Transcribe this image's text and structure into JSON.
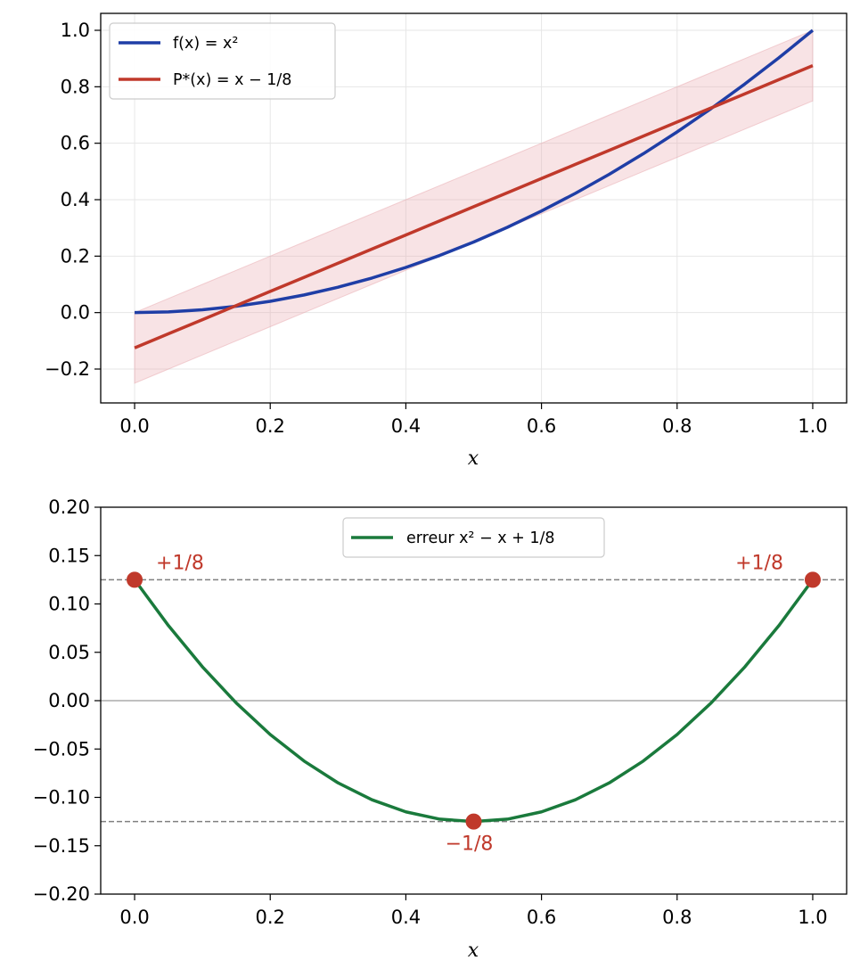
{
  "chart_data": [
    {
      "type": "line",
      "xlabel": "x",
      "xlim": [
        -0.05,
        1.05
      ],
      "ylim": [
        -0.32,
        1.06
      ],
      "xticks": [
        0.0,
        0.2,
        0.4,
        0.6,
        0.8,
        1.0
      ],
      "xtick_labels": [
        "0.0",
        "0.2",
        "0.4",
        "0.6",
        "0.8",
        "1.0"
      ],
      "yticks": [
        -0.2,
        0.0,
        0.2,
        0.4,
        0.6,
        0.8,
        1.0
      ],
      "ytick_labels": [
        "−0.2",
        "0.0",
        "0.2",
        "0.4",
        "0.6",
        "0.8",
        "1.0"
      ],
      "grid": true,
      "legend": "upper-left",
      "x": [
        0.0,
        0.05,
        0.1,
        0.15,
        0.2,
        0.25,
        0.3,
        0.35,
        0.4,
        0.45,
        0.5,
        0.55,
        0.6,
        0.65,
        0.7,
        0.75,
        0.8,
        0.85,
        0.9,
        0.95,
        1.0
      ],
      "series": [
        {
          "name": "f(x) = x²",
          "color": "#1f3ea6",
          "values": [
            0.0,
            0.0025,
            0.01,
            0.0225,
            0.04,
            0.0625,
            0.09,
            0.1225,
            0.16,
            0.2025,
            0.25,
            0.3025,
            0.36,
            0.4225,
            0.49,
            0.5625,
            0.64,
            0.7225,
            0.81,
            0.9025,
            1.0
          ]
        },
        {
          "name": "P*(x) = x − 1/8",
          "color": "#c0392b",
          "values": [
            -0.125,
            -0.075,
            -0.025,
            0.025,
            0.075,
            0.125,
            0.175,
            0.225,
            0.275,
            0.325,
            0.375,
            0.425,
            0.475,
            0.525,
            0.575,
            0.625,
            0.675,
            0.725,
            0.775,
            0.825,
            0.875
          ]
        }
      ],
      "band": {
        "around": "P*(x) = x − 1/8",
        "halfwidth": 0.125,
        "color": "#e8a7ad"
      }
    },
    {
      "type": "line",
      "xlabel": "x",
      "xlim": [
        -0.05,
        1.05
      ],
      "ylim": [
        -0.2,
        0.2
      ],
      "xticks": [
        0.0,
        0.2,
        0.4,
        0.6,
        0.8,
        1.0
      ],
      "xtick_labels": [
        "0.0",
        "0.2",
        "0.4",
        "0.6",
        "0.8",
        "1.0"
      ],
      "yticks": [
        -0.2,
        -0.15,
        -0.1,
        -0.05,
        0.0,
        0.05,
        0.1,
        0.15,
        0.2
      ],
      "ytick_labels": [
        "−0.20",
        "−0.15",
        "−0.10",
        "−0.05",
        "0.00",
        "0.05",
        "0.10",
        "0.15",
        "0.20"
      ],
      "grid": false,
      "legend": "upper-center",
      "x": [
        0.0,
        0.05,
        0.1,
        0.15,
        0.2,
        0.25,
        0.3,
        0.35,
        0.4,
        0.45,
        0.5,
        0.55,
        0.6,
        0.65,
        0.7,
        0.75,
        0.8,
        0.85,
        0.9,
        0.95,
        1.0
      ],
      "series": [
        {
          "name": "erreur x² − x + 1/8",
          "color": "#1a7a3c",
          "values": [
            0.125,
            0.0775,
            0.035,
            -0.0025,
            -0.035,
            -0.0625,
            -0.085,
            -0.1025,
            -0.115,
            -0.1225,
            -0.125,
            -0.1225,
            -0.115,
            -0.1025,
            -0.085,
            -0.0625,
            -0.035,
            -0.0025,
            0.035,
            0.0775,
            0.125
          ]
        }
      ],
      "hlines": [
        {
          "y": 0.125,
          "style": "dashed",
          "color": "#808080"
        },
        {
          "y": -0.125,
          "style": "dashed",
          "color": "#808080"
        },
        {
          "y": 0.0,
          "style": "solid",
          "color": "#808080"
        }
      ],
      "points": [
        {
          "x": 0.0,
          "y": 0.125,
          "label": "+1/8",
          "label_side": "above-right"
        },
        {
          "x": 0.5,
          "y": -0.125,
          "label": "−1/8",
          "label_side": "below"
        },
        {
          "x": 1.0,
          "y": 0.125,
          "label": "+1/8",
          "label_side": "above-left"
        }
      ],
      "point_color": "#c0392b"
    }
  ]
}
